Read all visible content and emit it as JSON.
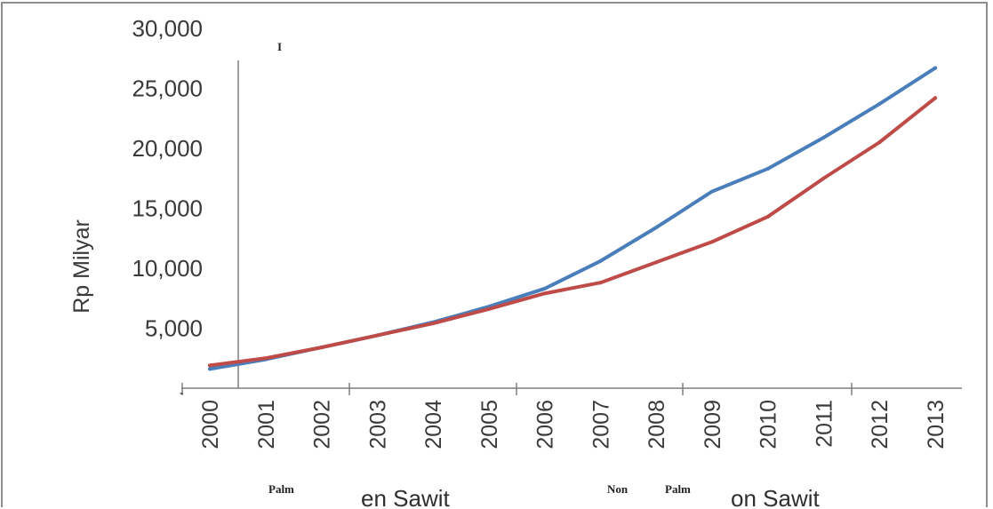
{
  "chart_data": {
    "type": "line",
    "title": "",
    "xlabel": "",
    "ylabel": "Rp Milyar",
    "ylim": [
      0,
      30000
    ],
    "y_ticks": [
      {
        "label": "30,000",
        "value": 30000
      },
      {
        "label": "25,000",
        "value": 25000
      },
      {
        "label": "20,000",
        "value": 20000
      },
      {
        "label": "15,000",
        "value": 15000
      },
      {
        "label": "10,000",
        "value": 10000
      },
      {
        "label": "5,000",
        "value": 5000
      }
    ],
    "categories": [
      "2000",
      "2001",
      "2002",
      "2003",
      "2004",
      "2005",
      "2006",
      "2007",
      "2008",
      "2009",
      "2010",
      "2011",
      "2012",
      "2013"
    ],
    "series": [
      {
        "name": "",
        "color": "#4a7ebb",
        "values": [
          1600,
          2400,
          3400,
          4400,
          5500,
          6800,
          8300,
          10600,
          13400,
          16400,
          18300,
          20900,
          23700,
          26700
        ]
      },
      {
        "name": "",
        "color": "#be4b48",
        "values": [
          1900,
          2500,
          3400,
          4400,
          5400,
          6600,
          7900,
          8800,
          10500,
          12200,
          14300,
          17500,
          20500,
          24200
        ]
      }
    ],
    "grid": false
  },
  "legend_fragments": {
    "palm_left": "Palm",
    "sawit_left": "en Sawit",
    "non": "Non",
    "palm_right": "Palm",
    "sawit_right": "on Sawit"
  },
  "stray_marks": {
    "top": "I",
    "left": "-"
  },
  "colors": {
    "series_blue": "#4a7ebb",
    "series_red": "#be4b48",
    "axis": "#7f7f7f",
    "frame": "#8d8d8d"
  }
}
